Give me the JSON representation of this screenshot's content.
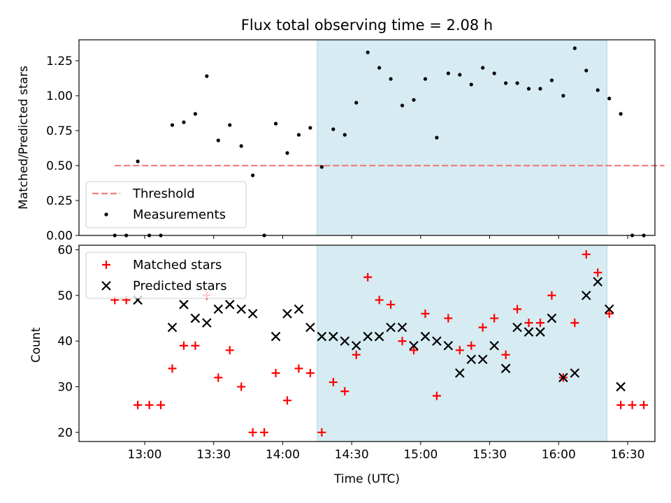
{
  "chart_data": {
    "type": "scatter",
    "title": "Flux total observing time = 2.08 h",
    "xlabel": "Time (UTC)",
    "xticks": [
      "13:00",
      "13:30",
      "14:00",
      "14:30",
      "15:00",
      "15:30",
      "16:00",
      "16:30"
    ],
    "shaded_span_minutes": [
      855,
      981
    ],
    "shade_color": "#add8e6",
    "top": {
      "ylabel": "Matched/Predicted stars",
      "ylim": [
        0,
        1.4
      ],
      "yticks": [
        "0.00",
        "0.25",
        "0.50",
        "0.75",
        "1.00",
        "1.25"
      ],
      "threshold": {
        "value": 0.5,
        "x_minutes": [
          767,
          1006
        ],
        "color": "#f08080",
        "label": "Threshold"
      },
      "measurements_label": "Measurements",
      "measurements": [
        [
          767,
          0.0
        ],
        [
          772,
          0.0
        ],
        [
          777,
          0.53
        ],
        [
          782,
          0.0
        ],
        [
          787,
          0.0
        ],
        [
          792,
          0.79
        ],
        [
          797,
          0.81
        ],
        [
          802,
          0.87
        ],
        [
          807,
          1.14
        ],
        [
          812,
          0.68
        ],
        [
          817,
          0.79
        ],
        [
          822,
          0.64
        ],
        [
          827,
          0.43
        ],
        [
          832,
          0.0
        ],
        [
          837,
          0.8
        ],
        [
          842,
          0.59
        ],
        [
          847,
          0.72
        ],
        [
          852,
          0.77
        ],
        [
          857,
          0.49
        ],
        [
          862,
          0.76
        ],
        [
          867,
          0.72
        ],
        [
          872,
          0.95
        ],
        [
          877,
          1.31
        ],
        [
          882,
          1.2
        ],
        [
          887,
          1.12
        ],
        [
          892,
          0.93
        ],
        [
          897,
          0.97
        ],
        [
          902,
          1.12
        ],
        [
          907,
          0.7
        ],
        [
          912,
          1.16
        ],
        [
          917,
          1.15
        ],
        [
          922,
          1.08
        ],
        [
          927,
          1.2
        ],
        [
          932,
          1.16
        ],
        [
          937,
          1.09
        ],
        [
          942,
          1.09
        ],
        [
          947,
          1.05
        ],
        [
          952,
          1.05
        ],
        [
          957,
          1.11
        ],
        [
          962,
          1.0
        ],
        [
          967,
          1.34
        ],
        [
          972,
          1.18
        ],
        [
          977,
          1.04
        ],
        [
          982,
          0.98
        ],
        [
          987,
          0.87
        ],
        [
          992,
          0.0
        ],
        [
          997,
          0.0
        ]
      ]
    },
    "bottom": {
      "ylabel": "Count",
      "ylim": [
        18,
        61
      ],
      "yticks": [
        "20",
        "30",
        "40",
        "50",
        "60"
      ],
      "matched_label": "Matched stars",
      "predicted_label": "Predicted stars",
      "matched_color": "#ff0000",
      "predicted_color": "#000000",
      "matched": [
        [
          767,
          49
        ],
        [
          772,
          49
        ],
        [
          777,
          26
        ],
        [
          782,
          26
        ],
        [
          787,
          26
        ],
        [
          792,
          34
        ],
        [
          797,
          39
        ],
        [
          802,
          39
        ],
        [
          807,
          50
        ],
        [
          812,
          32
        ],
        [
          817,
          38
        ],
        [
          822,
          30
        ],
        [
          827,
          20
        ],
        [
          832,
          20
        ],
        [
          837,
          33
        ],
        [
          842,
          27
        ],
        [
          847,
          34
        ],
        [
          852,
          33
        ],
        [
          857,
          20
        ],
        [
          862,
          31
        ],
        [
          867,
          29
        ],
        [
          872,
          37
        ],
        [
          877,
          54
        ],
        [
          882,
          49
        ],
        [
          887,
          48
        ],
        [
          892,
          40
        ],
        [
          897,
          38
        ],
        [
          902,
          46
        ],
        [
          907,
          28
        ],
        [
          912,
          45
        ],
        [
          917,
          38
        ],
        [
          922,
          39
        ],
        [
          927,
          43
        ],
        [
          932,
          45
        ],
        [
          937,
          37
        ],
        [
          942,
          47
        ],
        [
          947,
          44
        ],
        [
          952,
          44
        ],
        [
          957,
          50
        ],
        [
          962,
          32
        ],
        [
          967,
          44
        ],
        [
          972,
          59
        ],
        [
          977,
          55
        ],
        [
          982,
          46
        ],
        [
          987,
          26
        ],
        [
          992,
          26
        ],
        [
          997,
          26
        ]
      ],
      "predicted": [
        [
          777,
          49
        ],
        [
          792,
          43
        ],
        [
          797,
          48
        ],
        [
          802,
          45
        ],
        [
          807,
          44
        ],
        [
          812,
          47
        ],
        [
          817,
          48
        ],
        [
          822,
          47
        ],
        [
          827,
          46
        ],
        [
          837,
          41
        ],
        [
          842,
          46
        ],
        [
          847,
          47
        ],
        [
          852,
          43
        ],
        [
          857,
          41
        ],
        [
          862,
          41
        ],
        [
          867,
          40
        ],
        [
          872,
          39
        ],
        [
          877,
          41
        ],
        [
          882,
          41
        ],
        [
          887,
          43
        ],
        [
          892,
          43
        ],
        [
          897,
          39
        ],
        [
          902,
          41
        ],
        [
          907,
          40
        ],
        [
          912,
          39
        ],
        [
          917,
          33
        ],
        [
          922,
          36
        ],
        [
          927,
          36
        ],
        [
          932,
          39
        ],
        [
          937,
          34
        ],
        [
          942,
          43
        ],
        [
          947,
          42
        ],
        [
          952,
          42
        ],
        [
          957,
          45
        ],
        [
          962,
          32
        ],
        [
          967,
          33
        ],
        [
          972,
          50
        ],
        [
          977,
          53
        ],
        [
          982,
          47
        ],
        [
          987,
          30
        ]
      ]
    }
  }
}
